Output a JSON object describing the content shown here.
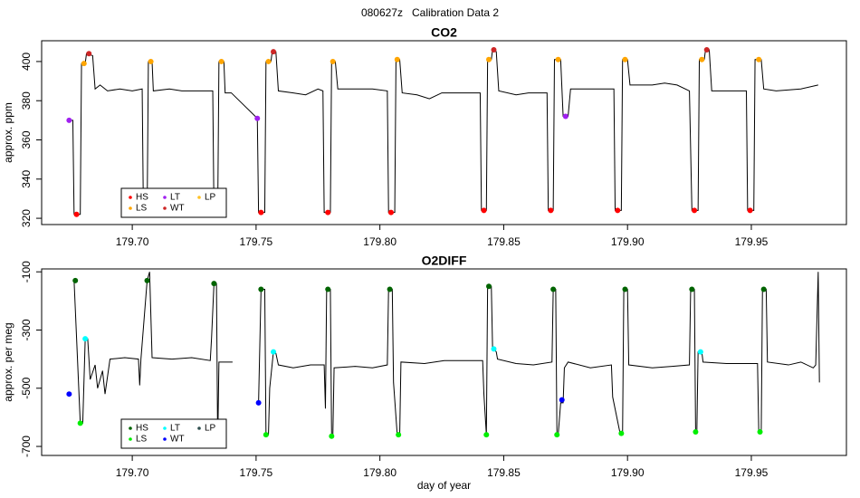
{
  "title": "080627z   Calibration Data 2",
  "chart_data": [
    {
      "type": "line",
      "title": "CO2",
      "y_label": "approx. ppm",
      "xlim": [
        179.6634,
        179.9884
      ],
      "ylim": [
        316.8,
        410.6
      ],
      "xticks": [
        {
          "value": 179.7,
          "label": "179.70"
        },
        179.75,
        {
          "value": 179.8,
          "label": "179.80"
        },
        179.85,
        {
          "value": 179.9,
          "label": "179.90"
        },
        179.95
      ],
      "yticks": [
        320,
        340,
        360,
        380,
        400
      ],
      "legend": "bottomleft",
      "series": [
        {
          "mode": "lines",
          "color": "#000000",
          "x": [
            179.6735,
            179.676,
            179.6765,
            179.679,
            179.6795,
            179.681,
            179.6815,
            179.684,
            179.685,
            179.687,
            179.69,
            179.695,
            179.7,
            179.704,
            179.7045,
            179.706,
            179.7065,
            179.708,
            179.7085,
            179.715,
            179.72,
            179.725,
            179.7325,
            179.733,
            179.7345,
            179.735,
            179.737,
            179.7375,
            179.74,
            179.7505,
            179.751,
            179.7535,
            179.754,
            179.756,
            179.7565,
            179.758,
            179.759,
            179.765,
            179.77,
            179.775,
            179.777,
            179.7775,
            179.78,
            179.7805,
            179.782,
            179.783,
            179.79,
            179.797,
            179.803,
            179.8035,
            179.806,
            179.8065,
            179.808,
            179.809,
            179.815,
            179.82,
            179.825,
            179.83,
            179.8405,
            179.841,
            179.843,
            179.8435,
            179.845,
            179.8455,
            179.847,
            179.848,
            179.855,
            179.86,
            179.8675,
            179.868,
            179.87,
            179.8705,
            179.873,
            179.874,
            179.876,
            179.877,
            179.885,
            179.8945,
            179.895,
            179.8975,
            179.898,
            179.9,
            179.901,
            179.91,
            179.915,
            179.92,
            179.925,
            179.926,
            179.9285,
            179.929,
            179.931,
            179.9315,
            179.933,
            179.934,
            179.94,
            179.948,
            179.9485,
            179.951,
            179.9515,
            179.954,
            179.955,
            179.96,
            179.97,
            179.977
          ],
          "values": [
            370,
            370,
            322,
            322,
            399,
            399,
            404,
            403,
            386,
            388,
            385,
            386,
            385,
            386,
            322,
            322,
            400,
            400,
            385,
            386,
            385,
            385,
            385,
            322,
            322,
            400,
            400,
            384,
            384,
            371,
            323,
            323,
            400,
            400,
            405,
            405,
            385,
            384,
            383,
            386,
            385,
            323,
            323,
            400,
            400,
            386,
            386,
            386,
            385,
            323,
            323,
            401,
            401,
            384,
            383,
            381,
            384,
            384,
            384,
            324,
            324,
            401,
            401,
            406,
            405,
            385,
            383,
            384,
            384,
            324,
            324,
            401,
            401,
            372,
            372,
            386,
            386,
            386,
            324,
            324,
            401,
            401,
            388,
            388,
            389,
            388,
            385,
            324,
            324,
            401,
            401,
            406,
            406,
            385,
            385,
            385,
            324,
            324,
            401,
            401,
            386,
            385,
            386,
            388
          ]
        },
        {
          "name": "HS",
          "mode": "markers",
          "color": "#ff0000",
          "x": [
            179.6775,
            179.7052,
            179.7335,
            179.752,
            179.779,
            179.8045,
            179.842,
            179.869,
            179.896,
            179.927,
            179.9495
          ],
          "values": [
            322,
            322,
            322,
            323,
            323,
            323,
            324,
            324,
            324,
            324,
            324
          ]
        },
        {
          "name": "LS",
          "mode": "markers",
          "color": "#ffa500",
          "x": [
            179.6805,
            179.7075,
            179.736,
            179.755,
            179.781,
            179.807,
            179.844,
            179.872,
            179.899,
            179.93,
            179.953
          ],
          "values": [
            399,
            400,
            400,
            400,
            400,
            401,
            401,
            401,
            401,
            401,
            401
          ]
        },
        {
          "name": "LT",
          "mode": "markers",
          "color": "#a020f0",
          "x": [
            179.6745,
            179.7505,
            179.875
          ],
          "values": [
            370,
            371,
            372
          ]
        },
        {
          "name": "WT",
          "mode": "markers",
          "color": "#cd2626",
          "x": [
            179.6825,
            179.757,
            179.846,
            179.932
          ],
          "values": [
            404,
            405,
            406,
            406
          ]
        },
        {
          "name": "LP",
          "mode": "markers",
          "color": "#ffc125",
          "x": [],
          "values": []
        }
      ]
    },
    {
      "type": "line",
      "title": "O2DIFF",
      "y_label": "approx. per meg",
      "x_label": "day of year",
      "xlim": [
        179.6634,
        179.9884
      ],
      "ylim": [
        -731,
        -90
      ],
      "xticks": [
        {
          "value": 179.7,
          "label": "179.70"
        },
        179.75,
        {
          "value": 179.8,
          "label": "179.80"
        },
        179.85,
        {
          "value": 179.9,
          "label": "179.90"
        },
        179.95
      ],
      "yticks": [
        -100,
        -300,
        -500,
        -700
      ],
      "legend": "bottomleft",
      "series": [
        {
          "mode": "lines",
          "color": "#000000",
          "x": [
            179.6765,
            179.679,
            179.68,
            179.681,
            179.682,
            179.683,
            179.685,
            179.686,
            179.688,
            179.689,
            179.691,
            179.697,
            179.7025,
            179.703,
            179.7035,
            179.706,
            179.707,
            179.708,
            179.716,
            179.724,
            179.7315,
            179.732,
            179.733,
            179.734,
            179.7345,
            179.735,
            179.7405,
            179.745,
            179.751,
            179.752,
            179.7535,
            179.754,
            179.755,
            179.7555,
            179.757,
            179.758,
            179.759,
            179.765,
            179.772,
            179.7775,
            179.778,
            179.7785,
            179.78,
            179.7805,
            179.781,
            179.7815,
            179.79,
            179.797,
            179.803,
            179.8035,
            179.805,
            179.8055,
            179.807,
            179.808,
            179.8085,
            179.818,
            179.826,
            179.8415,
            179.842,
            179.843,
            179.8435,
            179.845,
            179.8455,
            179.847,
            179.8475,
            179.855,
            179.862,
            179.8695,
            179.87,
            179.871,
            179.8715,
            179.872,
            179.873,
            179.874,
            179.8745,
            179.876,
            179.885,
            179.8935,
            179.894,
            179.897,
            179.898,
            179.8985,
            179.9,
            179.9005,
            179.91,
            179.918,
            179.925,
            179.9255,
            179.927,
            179.9275,
            179.928,
            179.9285,
            179.93,
            179.9305,
            179.94,
            179.9525,
            179.953,
            179.954,
            179.9545,
            179.956,
            179.9565,
            179.965,
            179.97,
            179.975,
            179.976,
            179.977,
            179.9775
          ],
          "values": [
            -130,
            -620,
            -620,
            -330,
            -330,
            -470,
            -420,
            -500,
            -440,
            -520,
            -400,
            -395,
            -400,
            -490,
            -400,
            -130,
            -100,
            -395,
            -400,
            -395,
            -405,
            -330,
            -140,
            -140,
            -700,
            -410,
            -410,
            null,
            -550,
            -160,
            -160,
            -660,
            -660,
            -500,
            -375,
            -380,
            -420,
            -430,
            -420,
            -420,
            -570,
            -160,
            -160,
            -665,
            -665,
            -430,
            -425,
            -430,
            -420,
            -160,
            -160,
            -480,
            -660,
            -660,
            -410,
            -415,
            -405,
            -405,
            -520,
            -660,
            -150,
            -150,
            -360,
            -375,
            -400,
            -415,
            -420,
            -410,
            -160,
            -160,
            -660,
            -660,
            -550,
            -550,
            -430,
            -410,
            -430,
            -420,
            -530,
            -655,
            -655,
            -160,
            -160,
            -420,
            -430,
            -425,
            -420,
            -160,
            -160,
            -650,
            -650,
            -375,
            -375,
            -410,
            -415,
            -415,
            -650,
            -650,
            -160,
            -160,
            -410,
            -420,
            -410,
            -430,
            -420,
            -100,
            -480
          ]
        },
        {
          "name": "HS",
          "mode": "markers",
          "color": "#006400",
          "x": [
            179.677,
            179.706,
            179.733,
            179.752,
            179.779,
            179.804,
            179.844,
            179.87,
            179.899,
            179.926,
            179.955
          ],
          "values": [
            -130,
            -130,
            -140,
            -160,
            -160,
            -160,
            -150,
            -160,
            -160,
            -160,
            -160
          ]
        },
        {
          "name": "LS",
          "mode": "markers",
          "color": "#00ee00",
          "x": [
            179.679,
            179.754,
            179.7805,
            179.8075,
            179.843,
            179.8715,
            179.8975,
            179.9275,
            179.9535
          ],
          "values": [
            -620,
            -660,
            -665,
            -660,
            -660,
            -660,
            -655,
            -650,
            -650
          ]
        },
        {
          "name": "LT",
          "mode": "markers",
          "color": "#00ffff",
          "x": [
            179.681,
            179.757,
            179.846,
            179.9295
          ],
          "values": [
            -330,
            -375,
            -365,
            -375
          ]
        },
        {
          "name": "WT",
          "mode": "markers",
          "color": "#0000ff",
          "x": [
            179.6745,
            179.751,
            179.8735
          ],
          "values": [
            -520,
            -550,
            -540
          ]
        },
        {
          "name": "LP",
          "mode": "markers",
          "color": "#2f4f4f",
          "x": [],
          "values": []
        }
      ]
    }
  ]
}
